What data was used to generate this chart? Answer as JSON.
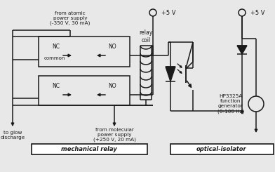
{
  "bg_color": "#e8e8e8",
  "lc": "#1a1a1a",
  "figsize": [
    3.92,
    2.45
  ],
  "dpi": 100,
  "label_from_atomic": "from atomic\npower supply\n(-350 V, 30 mA)",
  "label_from_molecular": "from molecular\npower supply\n(+250 V, 20 mA)",
  "label_to_glow": "to glow\ndischarge",
  "label_relay_coil": "relay\ncoil",
  "label_hp": "HP3325A\nfunction\ngenerator\n(0-100 Hz)",
  "label_plus5v": "+5 V",
  "label_NC": "NC",
  "label_NO": "NO",
  "label_common": "common",
  "label_mech": "mechanical relay",
  "label_oi": "optical-isolator"
}
